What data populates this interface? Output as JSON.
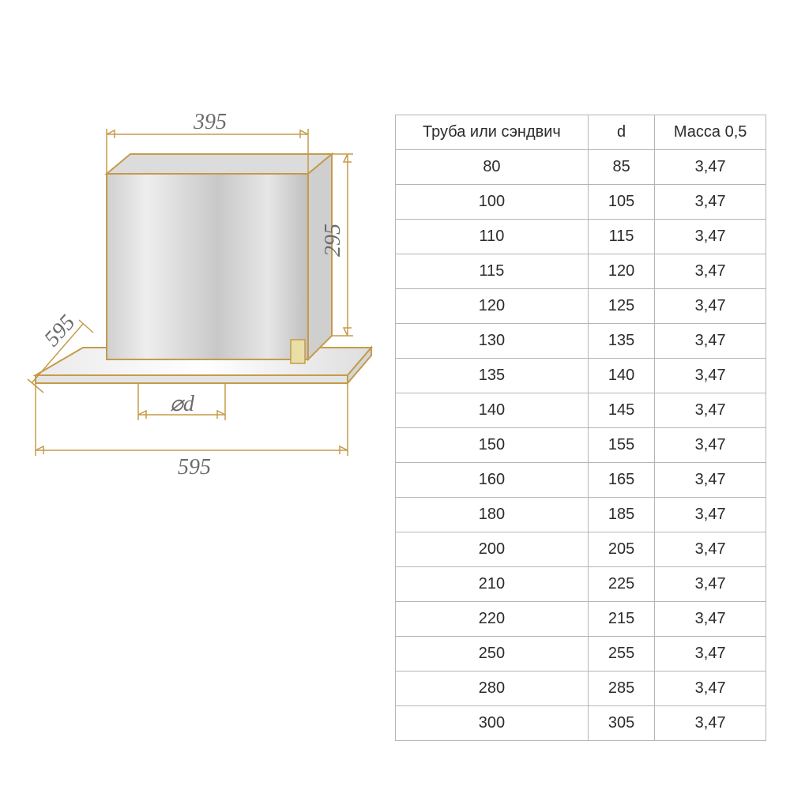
{
  "diagram": {
    "dimensions": {
      "top_width": "395",
      "height": "295",
      "depth": "595",
      "base_width": "595",
      "diameter_label": "⌀d"
    },
    "colors": {
      "outline": "#c59b4a",
      "dim_line": "#c59b4a",
      "dim_text": "#6b6b6b",
      "metal_light": "#e8e8e8",
      "metal_mid": "#cdcdcd",
      "metal_dark": "#b8b8b8",
      "plate_light": "#f2f2f2",
      "plate_edge": "#d6b16a"
    }
  },
  "table": {
    "type": "table",
    "border_color": "#b5b5b5",
    "text_color": "#2b2b2b",
    "background_color": "#ffffff",
    "font_size_pt": 15,
    "columns": [
      "Труба или сэндвич",
      "d",
      "Масса 0,5"
    ],
    "column_widths_pct": [
      52,
      18,
      30
    ],
    "rows": [
      [
        "80",
        "85",
        "3,47"
      ],
      [
        "100",
        "105",
        "3,47"
      ],
      [
        "110",
        "115",
        "3,47"
      ],
      [
        "115",
        "120",
        "3,47"
      ],
      [
        "120",
        "125",
        "3,47"
      ],
      [
        "130",
        "135",
        "3,47"
      ],
      [
        "135",
        "140",
        "3,47"
      ],
      [
        "140",
        "145",
        "3,47"
      ],
      [
        "150",
        "155",
        "3,47"
      ],
      [
        "160",
        "165",
        "3,47"
      ],
      [
        "180",
        "185",
        "3,47"
      ],
      [
        "200",
        "205",
        "3,47"
      ],
      [
        "210",
        "225",
        "3,47"
      ],
      [
        "220",
        "215",
        "3,47"
      ],
      [
        "250",
        "255",
        "3,47"
      ],
      [
        "280",
        "285",
        "3,47"
      ],
      [
        "300",
        "305",
        "3,47"
      ]
    ]
  }
}
